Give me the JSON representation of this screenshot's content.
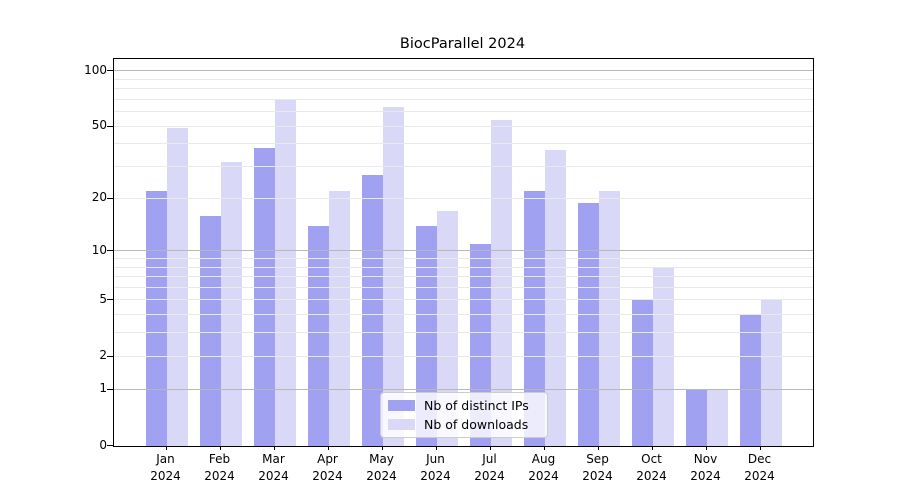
{
  "title": "BiocParallel 2024",
  "chart_data": {
    "type": "bar",
    "title": "BiocParallel 2024",
    "categories": [
      "Jan 2024",
      "Feb 2024",
      "Mar 2024",
      "Apr 2024",
      "May 2024",
      "Jun 2024",
      "Jul 2024",
      "Aug 2024",
      "Sep 2024",
      "Oct 2024",
      "Nov 2024",
      "Dec 2024"
    ],
    "series": [
      {
        "name": "Nb of distinct IPs",
        "color": "#a1a1f1",
        "values": [
          22,
          16,
          38,
          14,
          27,
          14,
          11,
          22,
          19,
          5,
          1,
          4
        ]
      },
      {
        "name": "Nb of downloads",
        "color": "#d9d9f7",
        "values": [
          49,
          32,
          70,
          22,
          64,
          17,
          54,
          37,
          22,
          8,
          1,
          5
        ]
      }
    ],
    "xlabel": "",
    "ylabel": "",
    "y_scale": "log1p",
    "ylim": [
      0,
      100
    ],
    "y_ticks": [
      100,
      50,
      20,
      10,
      5,
      2,
      1,
      0
    ],
    "minor_gridlines": [
      2,
      3,
      4,
      5,
      6,
      7,
      8,
      9,
      20,
      30,
      40,
      50,
      60,
      70,
      80,
      90
    ],
    "major_gridlines": [
      1,
      10,
      100
    ],
    "grid": "horizontal, drawn over bars",
    "legend_position": "lower center"
  },
  "colors": {
    "distinct_ips": "#a1a1f1",
    "downloads": "#d9d9f7",
    "minor_grid": "#e9e9e9",
    "major_grid": "#b8b8b8",
    "spine": "#000000",
    "legend_border": "#cccccc"
  }
}
